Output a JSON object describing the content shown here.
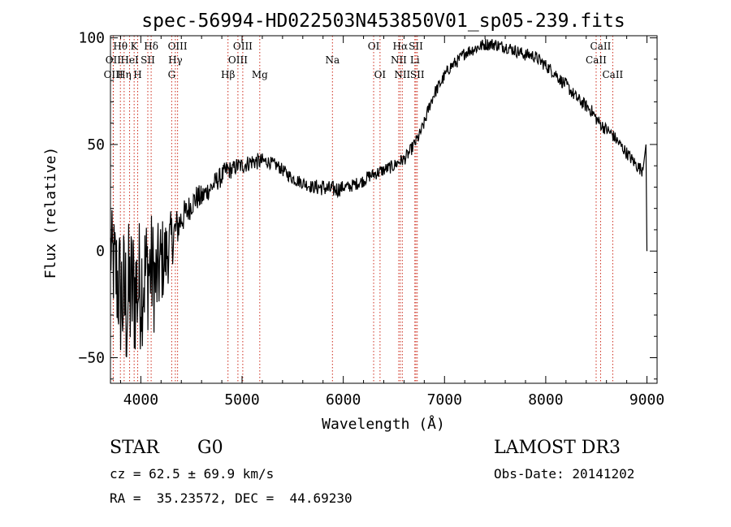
{
  "chart_data": {
    "type": "line",
    "title": "spec-56994-HD022503N453850V01_sp05-239.fits",
    "xlabel": "Wavelength (Å)",
    "ylabel": "Flux (relative)",
    "xlim": [
      3700,
      9100
    ],
    "ylim": [
      -62,
      101
    ],
    "xticks": [
      4000,
      5000,
      6000,
      7000,
      8000,
      9000
    ],
    "yticks": [
      -50,
      0,
      50,
      100
    ],
    "xtick_labels": [
      "4000",
      "5000",
      "6000",
      "7000",
      "8000",
      "9000"
    ],
    "ytick_labels": [
      "−50",
      "0",
      "50",
      "100"
    ],
    "series": [
      {
        "name": "flux",
        "color": "#000000",
        "x": [
          3700,
          3750,
          3800,
          3850,
          3900,
          3950,
          4000,
          4050,
          4100,
          4150,
          4200,
          4250,
          4300,
          4350,
          4400,
          4450,
          4500,
          4550,
          4600,
          4650,
          4700,
          4750,
          4800,
          4850,
          4900,
          4950,
          5000,
          5050,
          5100,
          5150,
          5200,
          5250,
          5300,
          5350,
          5400,
          5450,
          5500,
          5550,
          5600,
          5650,
          5700,
          5750,
          5800,
          5850,
          5900,
          5950,
          6000,
          6050,
          6100,
          6150,
          6200,
          6250,
          6300,
          6350,
          6400,
          6450,
          6500,
          6550,
          6600,
          6650,
          6700,
          6750,
          6800,
          6850,
          6900,
          6950,
          7000,
          7050,
          7100,
          7150,
          7200,
          7250,
          7300,
          7350,
          7400,
          7450,
          7500,
          7550,
          7600,
          7650,
          7700,
          7750,
          7800,
          7850,
          7900,
          7950,
          8000,
          8050,
          8100,
          8150,
          8200,
          8250,
          8300,
          8350,
          8400,
          8450,
          8500,
          8550,
          8600,
          8650,
          8700,
          8750,
          8800,
          8850,
          8900,
          8950,
          9000
        ],
        "y": [
          0,
          -10,
          -20,
          -25,
          -20,
          -18,
          -15,
          -10,
          -8,
          -15,
          -5,
          -2,
          5,
          10,
          15,
          18,
          22,
          25,
          25,
          28,
          30,
          33,
          35,
          38,
          38,
          40,
          40,
          41,
          42,
          42,
          42,
          42,
          41,
          40,
          38,
          36,
          34,
          33,
          32,
          31,
          30,
          30,
          30,
          29,
          29,
          29,
          30,
          30,
          31,
          32,
          33,
          35,
          36,
          37,
          38,
          39,
          40,
          42,
          43,
          46,
          50,
          54,
          60,
          68,
          74,
          78,
          82,
          86,
          88,
          90,
          93,
          94,
          95,
          96,
          97,
          97,
          97,
          96,
          96,
          95,
          94,
          93,
          92,
          92,
          91,
          89,
          87,
          85,
          83,
          80,
          78,
          75,
          72,
          70,
          68,
          66,
          62,
          59,
          57,
          55,
          52,
          49,
          46,
          43,
          40,
          38,
          50
        ],
        "noise": [
          20,
          28,
          34,
          38,
          36,
          34,
          32,
          30,
          28,
          26,
          22,
          18,
          14,
          10,
          8,
          7,
          6,
          6,
          6,
          5,
          5,
          5,
          5,
          5,
          4,
          4,
          4,
          4,
          4,
          4,
          4,
          3,
          3,
          3,
          3,
          3,
          3,
          3,
          3,
          3,
          3,
          4,
          4,
          4,
          4,
          4,
          3,
          3,
          3,
          3,
          3,
          3,
          3,
          3,
          3,
          3,
          3,
          3,
          3,
          3,
          3,
          3,
          3,
          3,
          3,
          3,
          3,
          3,
          3,
          3,
          3,
          3,
          3,
          3,
          3,
          3,
          3,
          3,
          3,
          3,
          3,
          3,
          3,
          3,
          3,
          3,
          3,
          3,
          3,
          3,
          3,
          3,
          3,
          3,
          3,
          3,
          3,
          3,
          3,
          3,
          3,
          3,
          3,
          3,
          3,
          3,
          3
        ]
      }
    ],
    "lines": [
      {
        "name": "Hθ",
        "wavelength": 3798,
        "row": 1
      },
      {
        "name": "OII",
        "wavelength": 3727,
        "row": 2
      },
      {
        "name": "OIII",
        "wavelength": 3729,
        "row": 3
      },
      {
        "name": "HeI",
        "wavelength": 3889,
        "row": 2
      },
      {
        "name": "Hη",
        "wavelength": 3835,
        "row": 3
      },
      {
        "name": "K",
        "wavelength": 3934,
        "row": 1
      },
      {
        "name": "H",
        "wavelength": 3969,
        "row": 3
      },
      {
        "name": "SII",
        "wavelength": 4069,
        "row": 2
      },
      {
        "name": "Hδ",
        "wavelength": 4102,
        "row": 1
      },
      {
        "name": "OIII",
        "wavelength": 4363,
        "row": 1
      },
      {
        "name": "Hγ",
        "wavelength": 4341,
        "row": 2
      },
      {
        "name": "G",
        "wavelength": 4305,
        "row": 3
      },
      {
        "name": "Hβ",
        "wavelength": 4861,
        "row": 3
      },
      {
        "name": "OIII",
        "wavelength": 5007,
        "row": 1
      },
      {
        "name": "OIII",
        "wavelength": 4959,
        "row": 2
      },
      {
        "name": "Mg",
        "wavelength": 5175,
        "row": 3
      },
      {
        "name": "Na",
        "wavelength": 5893,
        "row": 2
      },
      {
        "name": "OI",
        "wavelength": 6300,
        "row": 1
      },
      {
        "name": "OI",
        "wavelength": 6363,
        "row": 3
      },
      {
        "name": "Hα",
        "wavelength": 6563,
        "row": 1
      },
      {
        "name": "NII",
        "wavelength": 6548,
        "row": 2
      },
      {
        "name": "NII",
        "wavelength": 6583,
        "row": 3
      },
      {
        "name": "SII",
        "wavelength": 6717,
        "row": 1
      },
      {
        "name": "Li",
        "wavelength": 6707,
        "row": 2
      },
      {
        "name": "SII",
        "wavelength": 6731,
        "row": 3
      },
      {
        "name": "CaII",
        "wavelength": 8498,
        "row": 2
      },
      {
        "name": "CaII",
        "wavelength": 8542,
        "row": 1
      },
      {
        "name": "CaII",
        "wavelength": 8662,
        "row": 3
      }
    ]
  },
  "info": {
    "class_label": "STAR",
    "subclass": "G0",
    "survey": "LAMOST DR3",
    "redshift": "cz = 62.5 ± 69.9 km/s",
    "obs_date": "Obs-Date: 20141202",
    "coords": "RA =  35.23572, DEC =  44.69230"
  },
  "colors": {
    "line_marker": "#cc2a1a",
    "axis": "#000000"
  }
}
